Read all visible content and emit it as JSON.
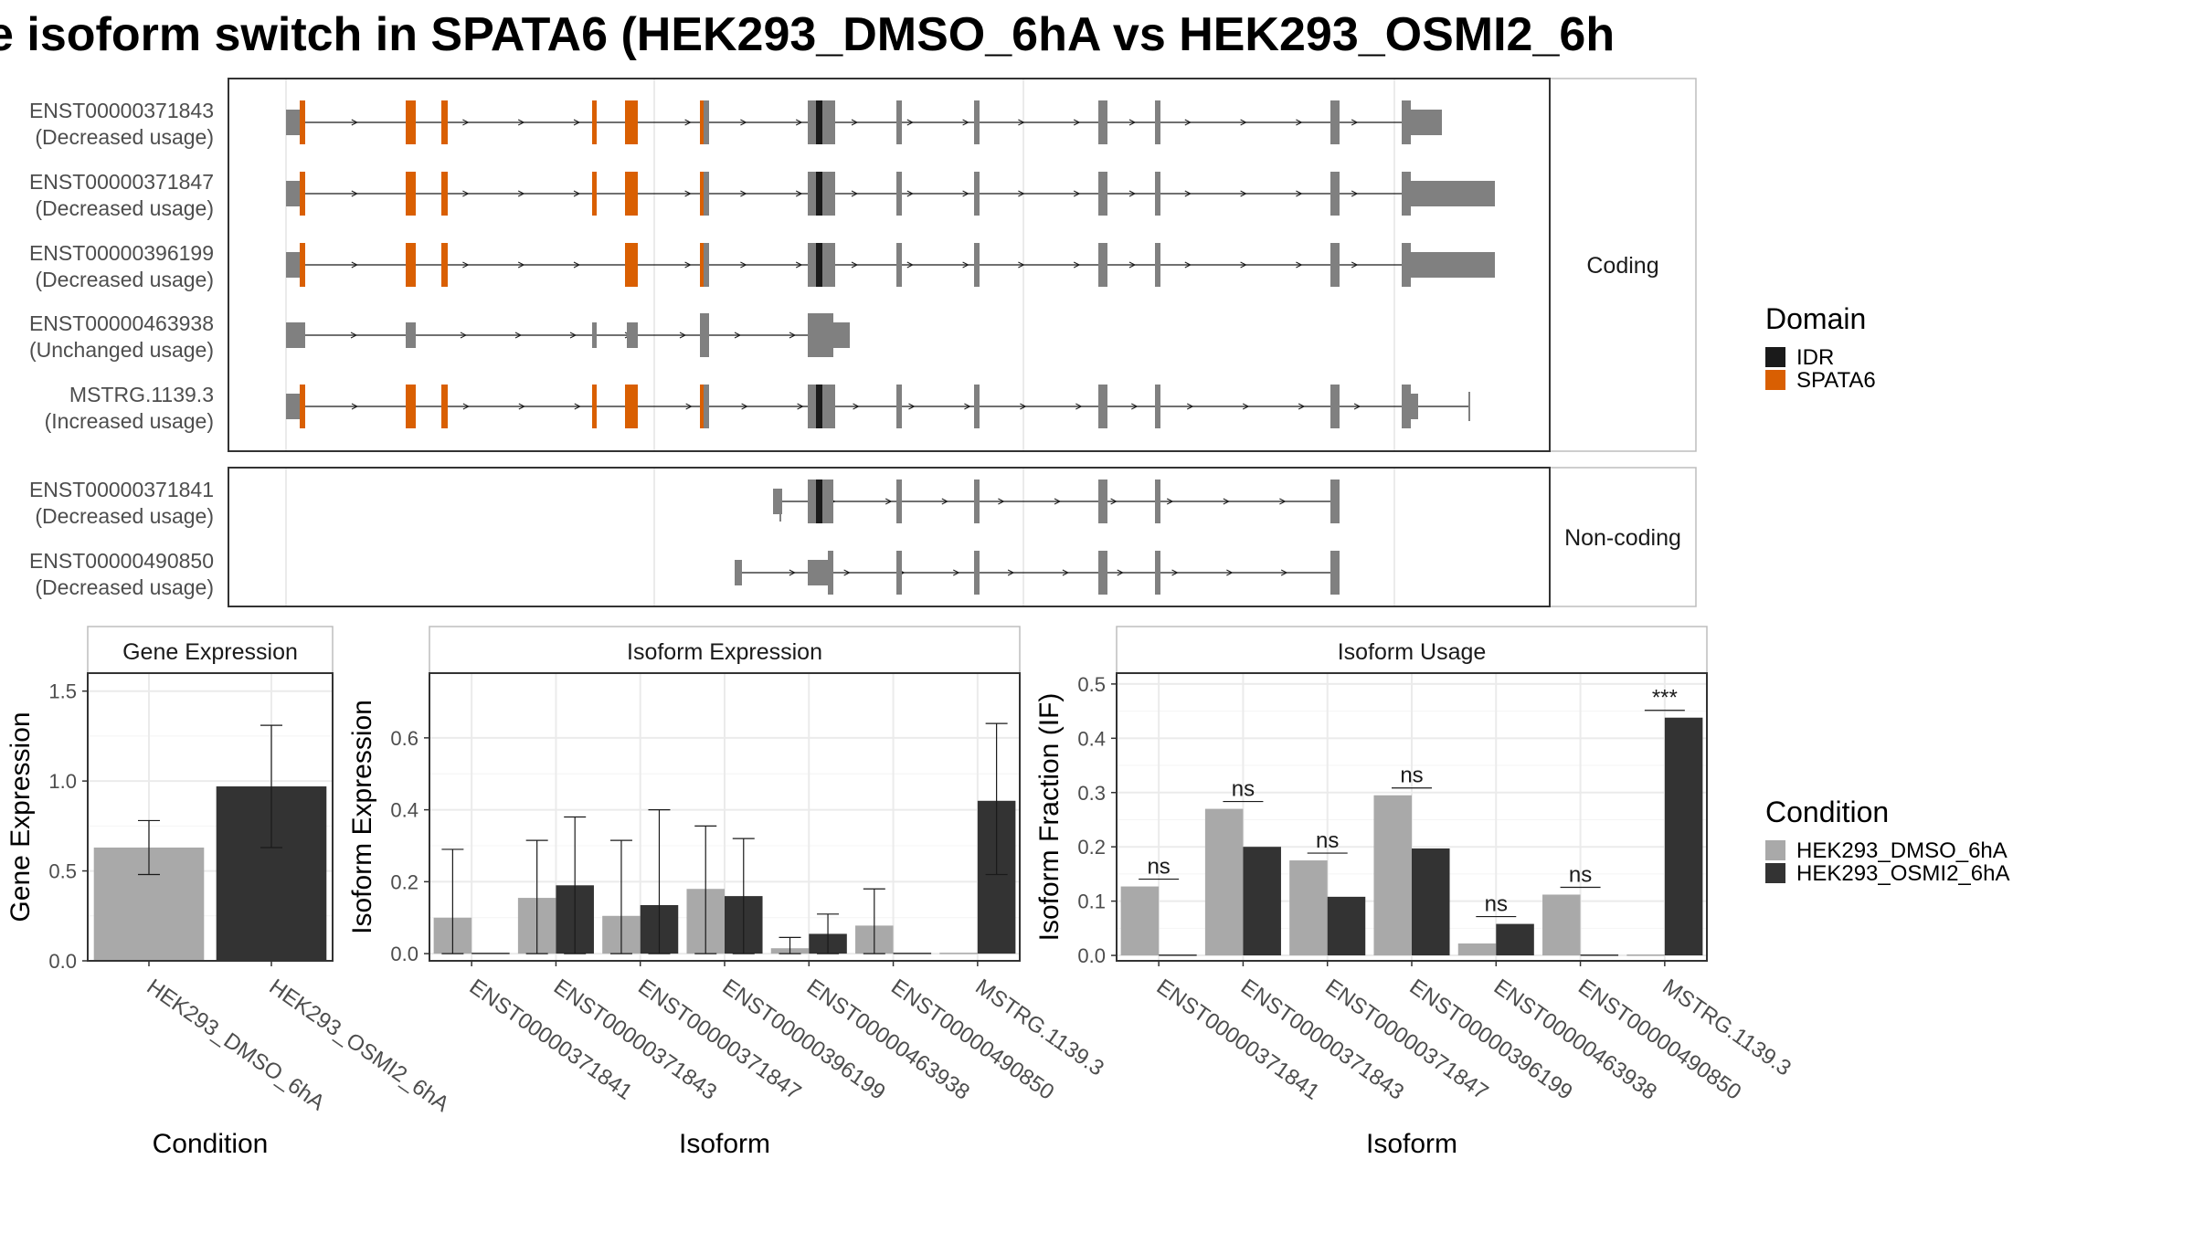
{
  "title": "e isoform switch in SPATA6 (HEK293_DMSO_6hA vs HEK293_OSMI2_6h",
  "colors": {
    "exon": "#808080",
    "idr": "#1a1a1a",
    "spata6": "#d95f02",
    "dmso": "#a9a9a9",
    "osmi2": "#333333"
  },
  "structure": {
    "coding_label": "Coding",
    "noncoding_label": "Non-coding",
    "legend_title": "Domain",
    "legend_items": [
      {
        "label": "IDR",
        "color": "#1a1a1a"
      },
      {
        "label": "SPATA6",
        "color": "#d95f02"
      }
    ],
    "coding_transcripts": [
      {
        "name": "ENST00000371843",
        "usage": "(Decreased usage)"
      },
      {
        "name": "ENST00000371847",
        "usage": "(Decreased usage)"
      },
      {
        "name": "ENST00000396199",
        "usage": "(Decreased usage)"
      },
      {
        "name": "ENST00000463938",
        "usage": "(Unchanged usage)"
      },
      {
        "name": "MSTRG.1139.3",
        "usage": "(Increased usage)"
      }
    ],
    "noncoding_transcripts": [
      {
        "name": "ENST00000371841",
        "usage": "(Decreased usage)"
      },
      {
        "name": "ENST00000490850",
        "usage": "(Decreased usage)"
      }
    ]
  },
  "chart_data": [
    {
      "type": "bar",
      "title": "Gene Expression",
      "xlabel": "Condition",
      "ylabel": "Gene Expression",
      "ylim": [
        0,
        1.6
      ],
      "yticks": [
        "0.0",
        "0.5",
        "1.0",
        "1.5"
      ],
      "categories": [
        "HEK293_DMSO_6hA",
        "HEK293_OSMI2_6hA"
      ],
      "values": [
        0.63,
        0.97
      ],
      "errors": [
        [
          0.48,
          0.78
        ],
        [
          0.63,
          1.31
        ]
      ]
    },
    {
      "type": "bar",
      "title": "Isoform Expression",
      "xlabel": "Isoform",
      "ylabel": "Isoform Expression",
      "ylim": [
        -0.02,
        0.78
      ],
      "yticks": [
        "0.0",
        "0.2",
        "0.4",
        "0.6"
      ],
      "categories": [
        "ENST00000371841",
        "ENST00000371843",
        "ENST00000371847",
        "ENST00000396199",
        "ENST00000463938",
        "ENST00000490850",
        "MSTRG.1139.3"
      ],
      "series": [
        {
          "name": "HEK293_DMSO_6hA",
          "values": [
            0.1,
            0.155,
            0.105,
            0.18,
            0.015,
            0.078,
            0.0
          ],
          "errors": [
            [
              0.0,
              0.29
            ],
            [
              0.0,
              0.315
            ],
            [
              0.0,
              0.315
            ],
            [
              0.0,
              0.355
            ],
            [
              0.0,
              0.045
            ],
            [
              0.0,
              0.18
            ],
            null
          ]
        },
        {
          "name": "HEK293_OSMI2_6hA",
          "values": [
            0.0,
            0.19,
            0.135,
            0.16,
            0.055,
            0.0,
            0.425
          ],
          "errors": [
            null,
            [
              0.0,
              0.38
            ],
            [
              0.0,
              0.4
            ],
            [
              0.0,
              0.32
            ],
            [
              0.0,
              0.11
            ],
            null,
            [
              0.22,
              0.64
            ]
          ]
        }
      ]
    },
    {
      "type": "bar",
      "title": "Isoform Usage",
      "xlabel": "Isoform",
      "ylabel": "Isoform Fraction (IF)",
      "ylim": [
        -0.01,
        0.52
      ],
      "yticks": [
        "0.0",
        "0.1",
        "0.2",
        "0.3",
        "0.4",
        "0.5"
      ],
      "categories": [
        "ENST00000371841",
        "ENST00000371843",
        "ENST00000371847",
        "ENST00000396199",
        "ENST00000463938",
        "ENST00000490850",
        "MSTRG.1139.3"
      ],
      "series": [
        {
          "name": "HEK293_DMSO_6hA",
          "values": [
            0.127,
            0.27,
            0.175,
            0.295,
            0.022,
            0.112,
            0.0
          ]
        },
        {
          "name": "HEK293_OSMI2_6hA",
          "values": [
            0.0,
            0.2,
            0.108,
            0.197,
            0.058,
            0.0,
            0.438
          ]
        }
      ],
      "significance": [
        "ns",
        "ns",
        "ns",
        "ns",
        "ns",
        "ns",
        "***"
      ]
    }
  ],
  "condition_legend": {
    "title": "Condition",
    "items": [
      {
        "label": "HEK293_DMSO_6hA",
        "color": "#a9a9a9"
      },
      {
        "label": "HEK293_OSMI2_6hA",
        "color": "#333333"
      }
    ]
  }
}
